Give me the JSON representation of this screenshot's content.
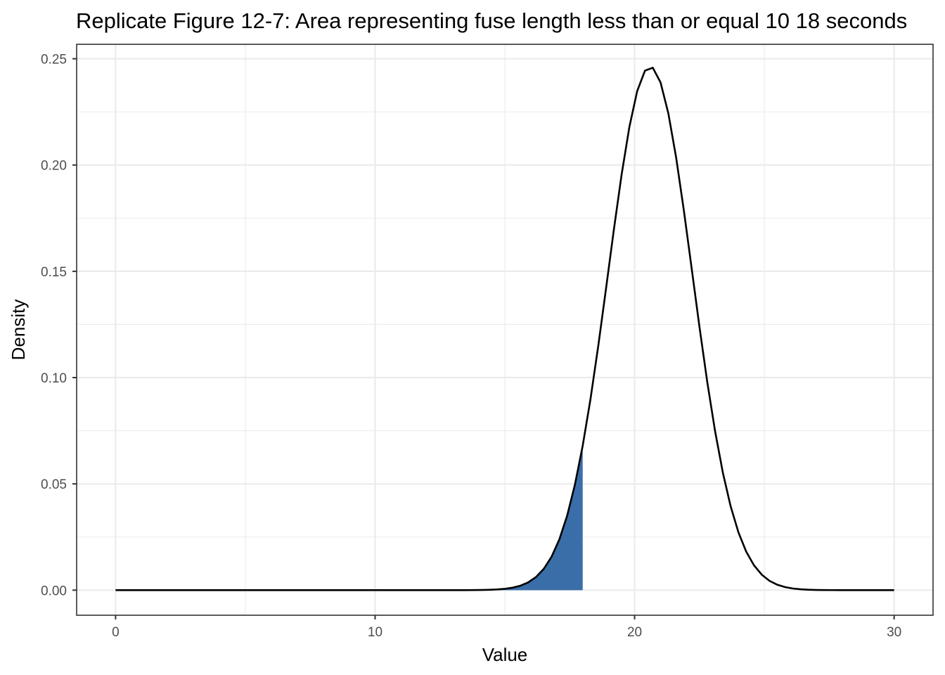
{
  "chart_data": {
    "type": "area",
    "title": "Replicate Figure 12-7: Area representing fuse length less than or equal 10 18 seconds",
    "xlabel": "Value",
    "ylabel": "Density",
    "xlim": [
      -1.5,
      31.5
    ],
    "ylim": [
      -0.0118,
      0.2568
    ],
    "x_ticks": [
      0,
      10,
      20,
      30
    ],
    "x_tick_labels": [
      "0",
      "10",
      "20",
      "30"
    ],
    "y_ticks": [
      0,
      0.05,
      0.1,
      0.15,
      0.2,
      0.25
    ],
    "y_tick_labels": [
      "0.00",
      "0.05",
      "0.10",
      "0.15",
      "0.20",
      "0.25"
    ],
    "x_minor_ticks": [
      5,
      15,
      25
    ],
    "y_minor_ticks": [
      0.025,
      0.075,
      0.125,
      0.175,
      0.225
    ],
    "grid": true,
    "theme": "bw",
    "series": [
      {
        "type": "line",
        "color": "#000000",
        "distribution": "normal",
        "mean": 20.6,
        "sd": 1.62,
        "x_range": [
          0,
          30
        ],
        "n_points": 101
      },
      {
        "type": "area",
        "color": "#3a6ea8",
        "distribution": "normal",
        "mean": 20.6,
        "sd": 1.62,
        "x_range": [
          0,
          18
        ],
        "n_points": 61
      }
    ]
  }
}
